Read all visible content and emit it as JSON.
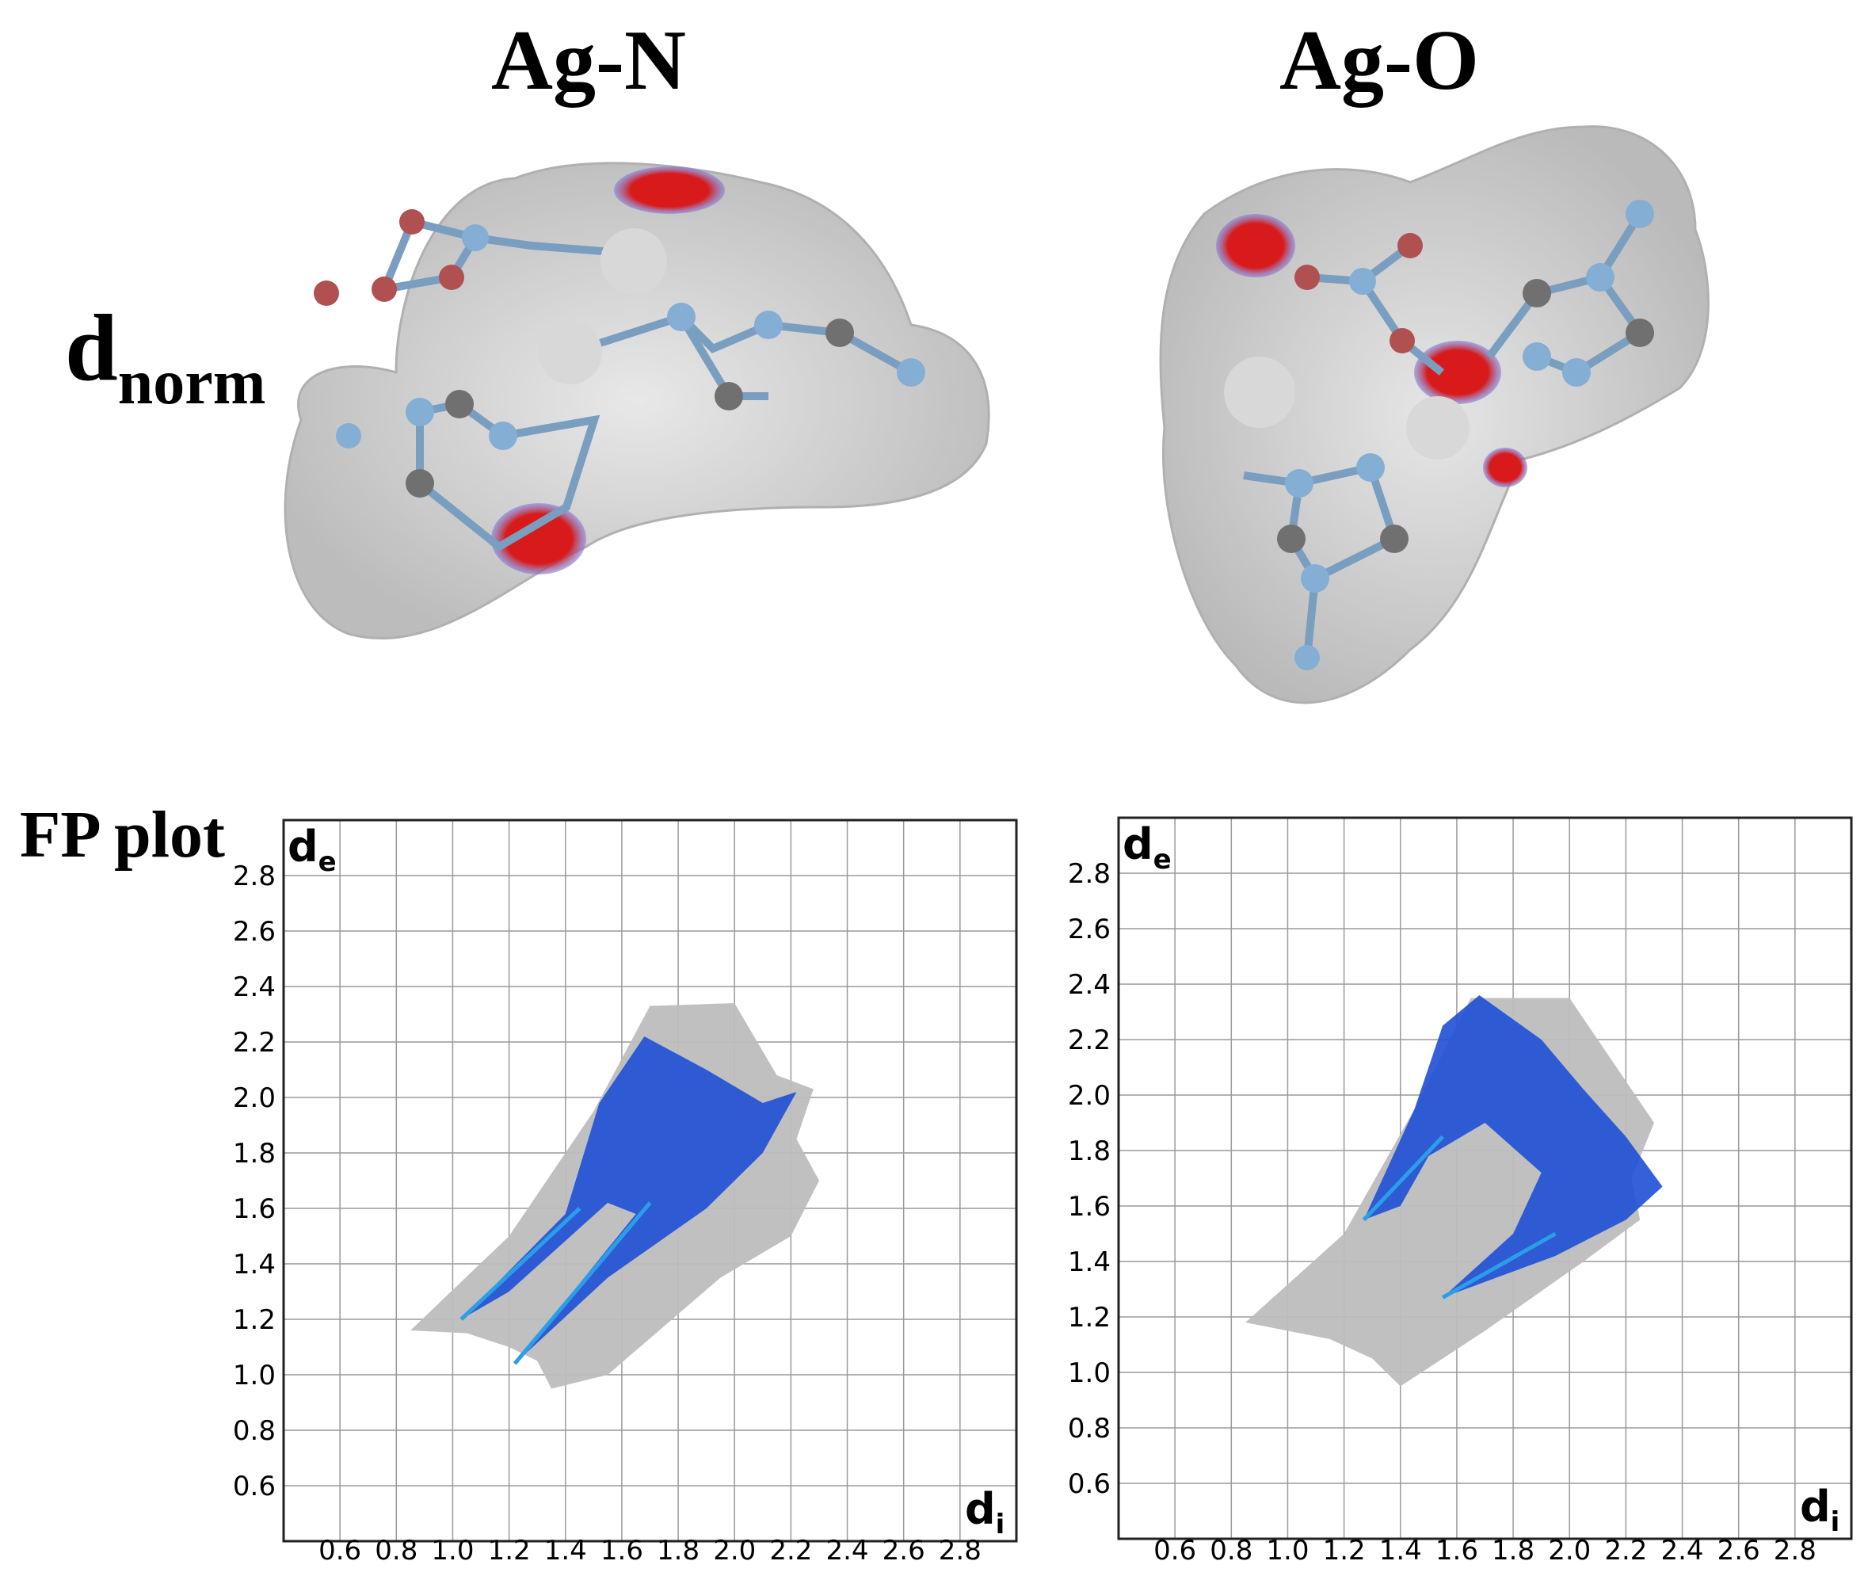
{
  "titles": {
    "left": "Ag-N",
    "right": "Ag-O"
  },
  "row_labels": {
    "dnorm_main": "d",
    "dnorm_sub": "norm",
    "fp": "FP plot"
  },
  "colors": {
    "surface": "#c8c8c8",
    "hotspot": "#d81a1a",
    "halo": "#6f6fd8",
    "fp_gray": "#bdbdbd",
    "fp_blue": "#1e4fd6",
    "fp_cyan": "#2a9fe8",
    "grid": "#9a9a9a",
    "atom_n": "#84aed4",
    "atom_c": "#707070",
    "atom_o": "#b05050",
    "atom_ag": "#d8d8d8"
  },
  "chart_data": [
    {
      "type": "scatter",
      "name_hint": "fingerprint",
      "title": "Ag-N",
      "xlabel_main": "d",
      "xlabel_sub": "i",
      "ylabel_main": "d",
      "ylabel_sub": "e",
      "xlim": [
        0.4,
        3.0
      ],
      "ylim": [
        0.4,
        3.0
      ],
      "xticks": [
        "0.6",
        "0.8",
        "1.0",
        "1.2",
        "1.4",
        "1.6",
        "1.8",
        "2.0",
        "2.2",
        "2.4",
        "2.6",
        "2.8"
      ],
      "yticks": [
        "0.6",
        "0.8",
        "1.0",
        "1.2",
        "1.4",
        "1.6",
        "1.8",
        "2.0",
        "2.2",
        "2.4",
        "2.6",
        "2.8"
      ],
      "series": [
        {
          "regions": [
            {
              "color": "gray",
              "poly": [
                [
                  0.85,
                  1.16
                ],
                [
                  1.2,
                  1.5
                ],
                [
                  1.5,
                  1.95
                ],
                [
                  1.7,
                  2.33
                ],
                [
                  2.0,
                  2.34
                ],
                [
                  2.15,
                  2.08
                ],
                [
                  2.28,
                  2.03
                ],
                [
                  2.22,
                  1.85
                ],
                [
                  2.3,
                  1.7
                ],
                [
                  2.2,
                  1.5
                ],
                [
                  1.95,
                  1.35
                ],
                [
                  1.55,
                  1.0
                ],
                [
                  1.35,
                  0.95
                ],
                [
                  1.3,
                  1.05
                ],
                [
                  1.2,
                  1.1
                ],
                [
                  1.05,
                  1.15
                ]
              ]
            },
            {
              "color": "blue",
              "poly": [
                [
                  1.03,
                  1.2
                ],
                [
                  1.4,
                  1.58
                ],
                [
                  1.52,
                  1.98
                ],
                [
                  1.68,
                  2.22
                ],
                [
                  1.9,
                  2.1
                ],
                [
                  2.1,
                  1.98
                ],
                [
                  2.22,
                  2.02
                ],
                [
                  2.1,
                  1.8
                ],
                [
                  1.9,
                  1.6
                ],
                [
                  1.55,
                  1.35
                ],
                [
                  1.22,
                  1.04
                ],
                [
                  1.65,
                  1.58
                ],
                [
                  1.55,
                  1.62
                ],
                [
                  1.2,
                  1.3
                ]
              ]
            }
          ],
          "spikes": [
            {
              "from": [
                1.03,
                1.2
              ],
              "to": [
                1.45,
                1.6
              ]
            },
            {
              "from": [
                1.22,
                1.04
              ],
              "to": [
                1.7,
                1.62
              ]
            }
          ]
        }
      ]
    },
    {
      "type": "scatter",
      "name_hint": "fingerprint",
      "title": "Ag-O",
      "xlabel_main": "d",
      "xlabel_sub": "i",
      "ylabel_main": "d",
      "ylabel_sub": "e",
      "xlim": [
        0.4,
        3.0
      ],
      "ylim": [
        0.4,
        3.0
      ],
      "xticks": [
        "0.6",
        "0.8",
        "1.0",
        "1.2",
        "1.4",
        "1.6",
        "1.8",
        "2.0",
        "2.2",
        "2.4",
        "2.6",
        "2.8"
      ],
      "yticks": [
        "0.6",
        "0.8",
        "1.0",
        "1.2",
        "1.4",
        "1.6",
        "1.8",
        "2.0",
        "2.2",
        "2.4",
        "2.6",
        "2.8"
      ],
      "series": [
        {
          "regions": [
            {
              "color": "gray",
              "poly": [
                [
                  0.85,
                  1.18
                ],
                [
                  1.2,
                  1.5
                ],
                [
                  1.45,
                  1.95
                ],
                [
                  1.65,
                  2.35
                ],
                [
                  2.0,
                  2.35
                ],
                [
                  2.2,
                  2.05
                ],
                [
                  2.3,
                  1.9
                ],
                [
                  2.22,
                  1.7
                ],
                [
                  2.25,
                  1.55
                ],
                [
                  2.05,
                  1.4
                ],
                [
                  1.7,
                  1.15
                ],
                [
                  1.4,
                  0.95
                ],
                [
                  1.3,
                  1.05
                ],
                [
                  1.15,
                  1.12
                ]
              ]
            },
            {
              "color": "blue",
              "poly": [
                [
                  1.27,
                  1.55
                ],
                [
                  1.45,
                  1.95
                ],
                [
                  1.55,
                  2.25
                ],
                [
                  1.68,
                  2.36
                ],
                [
                  1.9,
                  2.2
                ],
                [
                  2.05,
                  2.02
                ],
                [
                  2.2,
                  1.85
                ],
                [
                  2.33,
                  1.67
                ],
                [
                  2.2,
                  1.55
                ],
                [
                  1.95,
                  1.42
                ],
                [
                  1.55,
                  1.27
                ],
                [
                  1.8,
                  1.5
                ],
                [
                  1.9,
                  1.72
                ],
                [
                  1.7,
                  1.9
                ],
                [
                  1.5,
                  1.78
                ],
                [
                  1.4,
                  1.6
                ]
              ]
            }
          ],
          "spikes": [
            {
              "from": [
                1.27,
                1.55
              ],
              "to": [
                1.55,
                1.85
              ]
            },
            {
              "from": [
                1.55,
                1.27
              ],
              "to": [
                1.95,
                1.5
              ]
            }
          ]
        }
      ]
    }
  ]
}
